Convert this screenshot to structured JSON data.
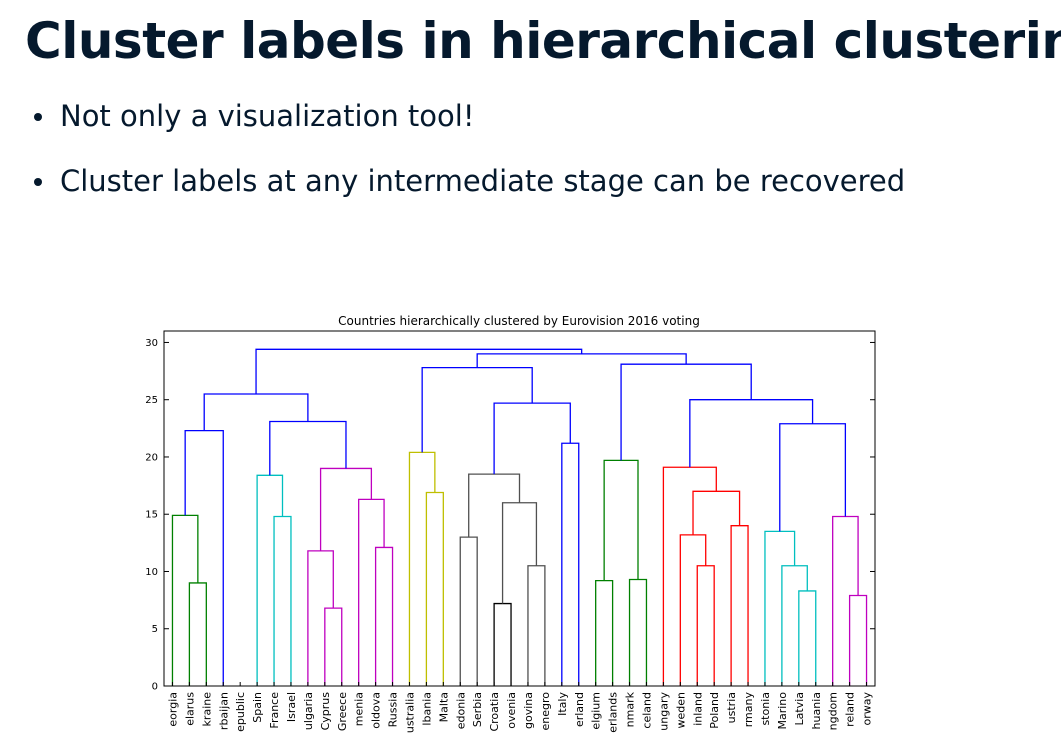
{
  "slide": {
    "title": "Cluster labels in hierarchical clustering",
    "bullets": [
      "Not only a visualization tool!",
      "Cluster labels at any intermediate stage can be recovered"
    ]
  },
  "chart_data": {
    "type": "dendrogram",
    "title": "Countries hierarchically clustered by Eurovision 2016 voting",
    "xlabel": "",
    "ylabel": "",
    "ylim": [
      0,
      31
    ],
    "yticks": [
      0,
      5,
      10,
      15,
      20,
      25,
      30
    ],
    "grid": false,
    "leaf_labels": [
      "Georgia",
      "Belarus",
      "Ukraine",
      "Azerbaijan",
      "Czech Republic",
      "Spain",
      "France",
      "Israel",
      "Bulgaria",
      "Cyprus",
      "Greece",
      "Armenia",
      "Moldova",
      "Russia",
      "Australia",
      "Albania",
      "Malta",
      "Macedonia",
      "Serbia",
      "Croatia",
      "Slovenia",
      "Bosnia & Herzegovina",
      "Montenegro",
      "Italy",
      "Switzerland",
      "Belgium",
      "Netherlands",
      "Denmark",
      "Iceland",
      "Hungary",
      "Sweden",
      "Finland",
      "Poland",
      "Austria",
      "Germany",
      "Estonia",
      "San Marino",
      "Latvia",
      "Lithuania",
      "United Kingdom",
      "Ireland",
      "Norway"
    ],
    "leaf_labels_visible": [
      "eorgia",
      "elarus",
      "kraine",
      "rbaijan",
      "epublic",
      "Spain",
      "France",
      "Israel",
      "ulgaria",
      "Cyprus",
      "Greece",
      "menia",
      "oldova",
      "Russia",
      "ustralia",
      "lbania",
      "Malta",
      "edonia",
      "Serbia",
      "Croatia",
      "ovenia",
      "govina",
      "enegro",
      "Italy",
      "erland",
      "elgium",
      "erlands",
      "nmark",
      "celand",
      "ungary",
      "weden",
      "inland",
      "Poland",
      "ustria",
      "rmany",
      "stonia",
      "Marino",
      "Latvia",
      "huania",
      "ngdom",
      "reland",
      "orway"
    ],
    "colors": {
      "C1": "#0000ff",
      "green": "#008000",
      "red": "#ff0000",
      "cyan": "#00bfbf",
      "magenta": "#bf00bf",
      "yellow": "#bfbf00",
      "black": "#000000",
      "gray": "#505050"
    },
    "merges": [
      {
        "left": 1,
        "right": 2,
        "height": 9.0,
        "color": "green"
      },
      {
        "left": 0,
        "right": "m0",
        "height": 14.9,
        "color": "green"
      },
      {
        "left": "m1",
        "right": 3,
        "height": 22.3,
        "color": "C1"
      },
      {
        "left": 6,
        "right": 7,
        "height": 14.8,
        "color": "cyan"
      },
      {
        "left": 5,
        "right": "m3",
        "height": 18.4,
        "color": "cyan"
      },
      {
        "left": 9,
        "right": 10,
        "height": 6.8,
        "color": "magenta"
      },
      {
        "left": 8,
        "right": "m5",
        "height": 11.8,
        "color": "magenta"
      },
      {
        "left": 12,
        "right": 13,
        "height": 12.1,
        "color": "magenta"
      },
      {
        "left": 11,
        "right": "m7",
        "height": 16.3,
        "color": "magenta"
      },
      {
        "left": "m6",
        "right": "m8",
        "height": 19.0,
        "color": "magenta"
      },
      {
        "left": "m4",
        "right": "m9",
        "height": 23.1,
        "color": "C1"
      },
      {
        "left": "m2",
        "right": "m10",
        "height": 25.5,
        "color": "C1"
      },
      {
        "left": 15,
        "right": 16,
        "height": 16.9,
        "color": "yellow"
      },
      {
        "left": 14,
        "right": "m12",
        "height": 20.4,
        "color": "yellow"
      },
      {
        "left": 19,
        "right": 20,
        "height": 7.2,
        "color": "black"
      },
      {
        "left": 21,
        "right": 22,
        "height": 10.5,
        "color": "gray"
      },
      {
        "left": "m14",
        "right": "m15",
        "height": 16.0,
        "color": "gray"
      },
      {
        "left": 17,
        "right": 18,
        "height": 13.0,
        "color": "gray"
      },
      {
        "left": "m17",
        "right": "m16",
        "height": 18.5,
        "color": "gray"
      },
      {
        "left": 23,
        "right": 24,
        "height": 21.2,
        "color": "C1"
      },
      {
        "left": "m18",
        "right": "m19",
        "height": 24.7,
        "color": "C1"
      },
      {
        "left": "m13",
        "right": "m20",
        "height": 27.8,
        "color": "C1"
      },
      {
        "left": 25,
        "right": 26,
        "height": 9.2,
        "color": "green"
      },
      {
        "left": 27,
        "right": 28,
        "height": 9.3,
        "color": "green"
      },
      {
        "left": "m22",
        "right": "m23",
        "height": 19.7,
        "color": "green"
      },
      {
        "left": 31,
        "right": 32,
        "height": 10.5,
        "color": "red"
      },
      {
        "left": 30,
        "right": "m25",
        "height": 13.2,
        "color": "red"
      },
      {
        "left": 33,
        "right": 34,
        "height": 14.0,
        "color": "red"
      },
      {
        "left": "m26",
        "right": "m27",
        "height": 17.0,
        "color": "red"
      },
      {
        "left": 29,
        "right": "m28",
        "height": 19.1,
        "color": "red"
      },
      {
        "left": 37,
        "right": 38,
        "height": 8.3,
        "color": "cyan"
      },
      {
        "left": 36,
        "right": "m30",
        "height": 10.5,
        "color": "cyan"
      },
      {
        "left": 35,
        "right": "m31",
        "height": 13.5,
        "color": "cyan"
      },
      {
        "left": 40,
        "right": 41,
        "height": 7.9,
        "color": "magenta"
      },
      {
        "left": 39,
        "right": "m33",
        "height": 14.8,
        "color": "magenta"
      },
      {
        "left": "m32",
        "right": "m34",
        "height": 22.9,
        "color": "C1"
      },
      {
        "left": "m29",
        "right": "m35",
        "height": 25.0,
        "color": "C1"
      },
      {
        "left": "m24",
        "right": "m36",
        "height": 28.1,
        "color": "C1"
      },
      {
        "left": "m21",
        "right": "m37",
        "height": 29.0,
        "color": "C1"
      },
      {
        "left": "m11",
        "right": "m38",
        "height": 29.4,
        "color": "C1"
      }
    ]
  }
}
